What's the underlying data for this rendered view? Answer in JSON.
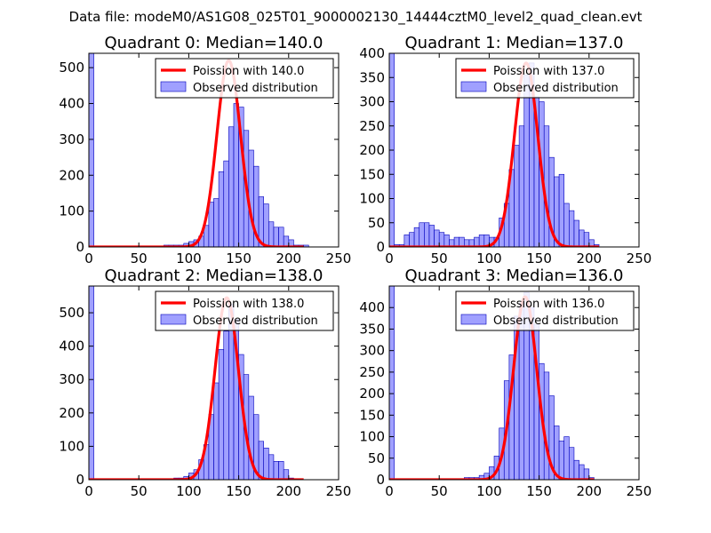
{
  "figure": {
    "suptitle": "Data file: modeM0/AS1G08_025T01_9000002130_14444cztM0_level2_quad_clean.evt"
  },
  "colors": {
    "bar_fill": "#8080ff",
    "bar_edge": "#0000bb",
    "poisson_line": "#ff0000",
    "axes_edge": "#000000",
    "legend_edge": "#000000"
  },
  "chart_data": [
    {
      "type": "bar",
      "title": "Quadrant 0: Median=140.0",
      "xlim": [
        0,
        250
      ],
      "ylim": [
        0,
        540
      ],
      "xticks": [
        "0",
        "50",
        "100",
        "150",
        "200",
        "250"
      ],
      "yticks": [
        "0",
        "100",
        "200",
        "300",
        "400",
        "500"
      ],
      "ytick_values": [
        0,
        100,
        200,
        300,
        400,
        500
      ],
      "bin_width": 5,
      "bins": [
        [
          0,
          540
        ],
        [
          75,
          5
        ],
        [
          80,
          5
        ],
        [
          85,
          5
        ],
        [
          90,
          5
        ],
        [
          95,
          10
        ],
        [
          100,
          15
        ],
        [
          105,
          20
        ],
        [
          110,
          30
        ],
        [
          115,
          60
        ],
        [
          120,
          125
        ],
        [
          125,
          135
        ],
        [
          130,
          210
        ],
        [
          135,
          240
        ],
        [
          140,
          335
        ],
        [
          145,
          400
        ],
        [
          150,
          390
        ],
        [
          155,
          325
        ],
        [
          160,
          270
        ],
        [
          165,
          225
        ],
        [
          170,
          140
        ],
        [
          175,
          120
        ],
        [
          180,
          70
        ],
        [
          185,
          55
        ],
        [
          190,
          55
        ],
        [
          195,
          30
        ],
        [
          200,
          20
        ],
        [
          205,
          5
        ],
        [
          210,
          5
        ],
        [
          215,
          5
        ]
      ],
      "poisson": {
        "mean": 140.0,
        "amplitude": 520,
        "sigma": 11.8,
        "x_range": [
          0,
          215
        ]
      },
      "legend": {
        "position": "top-right",
        "entries": [
          "Poission with 140.0",
          "Observed distribution"
        ]
      }
    },
    {
      "type": "bar",
      "title": "Quadrant 1: Median=137.0",
      "xlim": [
        0,
        250
      ],
      "ylim": [
        0,
        400
      ],
      "xticks": [
        "0",
        "50",
        "100",
        "150",
        "200",
        "250"
      ],
      "yticks": [
        "0",
        "50",
        "100",
        "150",
        "200",
        "250",
        "300",
        "350",
        "400"
      ],
      "ytick_values": [
        0,
        50,
        100,
        150,
        200,
        250,
        300,
        350,
        400
      ],
      "bin_width": 5,
      "bins": [
        [
          0,
          400
        ],
        [
          5,
          5
        ],
        [
          10,
          5
        ],
        [
          15,
          25
        ],
        [
          20,
          30
        ],
        [
          25,
          40
        ],
        [
          30,
          50
        ],
        [
          35,
          50
        ],
        [
          40,
          45
        ],
        [
          45,
          35
        ],
        [
          50,
          30
        ],
        [
          55,
          25
        ],
        [
          60,
          15
        ],
        [
          65,
          20
        ],
        [
          70,
          20
        ],
        [
          75,
          15
        ],
        [
          80,
          15
        ],
        [
          85,
          20
        ],
        [
          90,
          25
        ],
        [
          95,
          25
        ],
        [
          100,
          20
        ],
        [
          105,
          20
        ],
        [
          110,
          60
        ],
        [
          115,
          90
        ],
        [
          120,
          160
        ],
        [
          125,
          210
        ],
        [
          130,
          250
        ],
        [
          135,
          355
        ],
        [
          140,
          380
        ],
        [
          145,
          310
        ],
        [
          150,
          300
        ],
        [
          155,
          250
        ],
        [
          160,
          185
        ],
        [
          165,
          145
        ],
        [
          170,
          150
        ],
        [
          175,
          90
        ],
        [
          180,
          75
        ],
        [
          185,
          55
        ],
        [
          190,
          35
        ],
        [
          195,
          30
        ],
        [
          200,
          15
        ],
        [
          205,
          5
        ]
      ],
      "poisson": {
        "mean": 137.0,
        "amplitude": 380,
        "sigma": 11.7,
        "x_range": [
          0,
          210
        ]
      },
      "legend": {
        "position": "top-right",
        "entries": [
          "Poission with 137.0",
          "Observed distribution"
        ]
      }
    },
    {
      "type": "bar",
      "title": "Quadrant 2: Median=138.0",
      "xlim": [
        0,
        250
      ],
      "ylim": [
        0,
        580
      ],
      "xticks": [
        "0",
        "50",
        "100",
        "150",
        "200",
        "250"
      ],
      "yticks": [
        "0",
        "100",
        "200",
        "300",
        "400",
        "500"
      ],
      "ytick_values": [
        0,
        100,
        200,
        300,
        400,
        500
      ],
      "bin_width": 5,
      "bins": [
        [
          0,
          580
        ],
        [
          85,
          5
        ],
        [
          90,
          5
        ],
        [
          95,
          10
        ],
        [
          100,
          20
        ],
        [
          105,
          30
        ],
        [
          110,
          60
        ],
        [
          115,
          105
        ],
        [
          120,
          195
        ],
        [
          125,
          290
        ],
        [
          130,
          390
        ],
        [
          135,
          445
        ],
        [
          140,
          525
        ],
        [
          145,
          480
        ],
        [
          150,
          375
        ],
        [
          155,
          315
        ],
        [
          160,
          250
        ],
        [
          165,
          195
        ],
        [
          170,
          115
        ],
        [
          175,
          95
        ],
        [
          180,
          75
        ],
        [
          185,
          55
        ],
        [
          190,
          55
        ],
        [
          195,
          30
        ],
        [
          200,
          5
        ]
      ],
      "poisson": {
        "mean": 138.0,
        "amplitude": 545,
        "sigma": 11.7,
        "x_range": [
          0,
          215
        ]
      },
      "legend": {
        "position": "top-right",
        "entries": [
          "Poission with 138.0",
          "Observed distribution"
        ]
      }
    },
    {
      "type": "bar",
      "title": "Quadrant 3: Median=136.0",
      "xlim": [
        0,
        250
      ],
      "ylim": [
        0,
        450
      ],
      "xticks": [
        "0",
        "50",
        "100",
        "150",
        "200",
        "250"
      ],
      "yticks": [
        "0",
        "50",
        "100",
        "150",
        "200",
        "250",
        "300",
        "350",
        "400"
      ],
      "ytick_values": [
        0,
        50,
        100,
        150,
        200,
        250,
        300,
        350,
        400
      ],
      "bin_width": 5,
      "bins": [
        [
          0,
          450
        ],
        [
          75,
          5
        ],
        [
          80,
          5
        ],
        [
          85,
          5
        ],
        [
          90,
          10
        ],
        [
          95,
          15
        ],
        [
          100,
          30
        ],
        [
          105,
          55
        ],
        [
          110,
          120
        ],
        [
          115,
          230
        ],
        [
          120,
          290
        ],
        [
          125,
          380
        ],
        [
          130,
          410
        ],
        [
          135,
          435
        ],
        [
          140,
          400
        ],
        [
          145,
          360
        ],
        [
          150,
          270
        ],
        [
          155,
          250
        ],
        [
          160,
          195
        ],
        [
          165,
          125
        ],
        [
          170,
          90
        ],
        [
          175,
          100
        ],
        [
          180,
          75
        ],
        [
          185,
          45
        ],
        [
          190,
          35
        ],
        [
          195,
          25
        ],
        [
          200,
          5
        ]
      ],
      "poisson": {
        "mean": 136.0,
        "amplitude": 425,
        "sigma": 11.6,
        "x_range": [
          0,
          205
        ]
      },
      "legend": {
        "position": "top-right",
        "entries": [
          "Poission with 136.0",
          "Observed distribution"
        ]
      }
    }
  ]
}
